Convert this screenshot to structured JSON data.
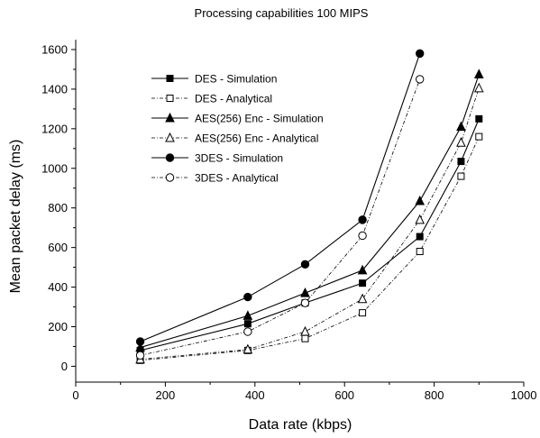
{
  "chart_data": {
    "type": "line",
    "title": "Processing capabilities 100 MIPS",
    "xlabel": "Data rate (kbps)",
    "ylabel": "Mean packet delay (ms)",
    "xlim": [
      0,
      1000
    ],
    "ylim": [
      -80,
      1650
    ],
    "xticks": [
      0,
      200,
      400,
      600,
      800,
      1000
    ],
    "yticks": [
      0,
      200,
      400,
      600,
      800,
      1000,
      1200,
      1400,
      1600
    ],
    "grid": false,
    "legend_position": "top-left",
    "series": [
      {
        "name": "DES - Simulation",
        "marker": "square-filled",
        "line": "solid",
        "x": [
          144,
          384,
          512,
          640,
          768,
          860,
          900
        ],
        "y": [
          80,
          215,
          320,
          420,
          655,
          1035,
          1250
        ]
      },
      {
        "name": "DES - Analytical",
        "marker": "square-open",
        "line": "dashdot",
        "x": [
          144,
          384,
          512,
          640,
          768,
          860,
          900
        ],
        "y": [
          30,
          80,
          140,
          270,
          580,
          960,
          1160
        ]
      },
      {
        "name": "AES(256) Enc - Simulation",
        "marker": "triangle-filled",
        "line": "solid",
        "x": [
          144,
          384,
          512,
          640,
          768,
          860,
          900
        ],
        "y": [
          95,
          255,
          370,
          485,
          835,
          1210,
          1475
        ]
      },
      {
        "name": "AES(256) Enc - Analytical",
        "marker": "triangle-open",
        "line": "dashdot",
        "x": [
          144,
          384,
          512,
          640,
          768,
          860,
          900
        ],
        "y": [
          35,
          85,
          175,
          340,
          740,
          1130,
          1405
        ]
      },
      {
        "name": "3DES - Simulation",
        "marker": "circle-filled",
        "line": "solid",
        "x": [
          144,
          384,
          512,
          640,
          768
        ],
        "y": [
          125,
          350,
          515,
          740,
          1580
        ]
      },
      {
        "name": "3DES - Analytical",
        "marker": "circle-open",
        "line": "dashdot",
        "x": [
          144,
          384,
          512,
          640,
          768
        ],
        "y": [
          55,
          175,
          320,
          660,
          1450
        ]
      }
    ]
  }
}
